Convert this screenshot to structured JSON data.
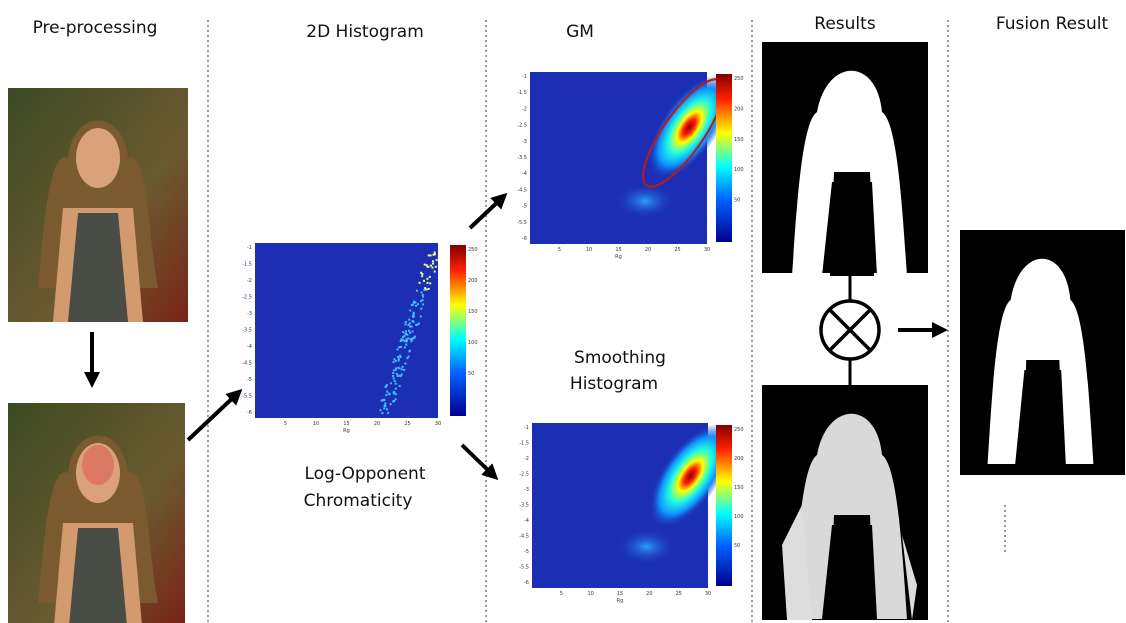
{
  "columns": {
    "preprocessing": "Pre-processing",
    "histogram": "2D Histogram",
    "gm": "GM",
    "results": "Results",
    "fusion": "Fusion Result"
  },
  "captions": {
    "log_opponent": [
      "Log-Opponent",
      "Chromaticity"
    ],
    "smoothing": [
      "Smoothing",
      "Histogram"
    ]
  },
  "heatmap_axes": {
    "xticks": [
      "5",
      "10",
      "15",
      "20",
      "25",
      "30"
    ],
    "yticks": [
      "-1",
      "-1.5",
      "-2",
      "-2.5",
      "-3",
      "-3.5",
      "-4",
      "-4.5",
      "-5",
      "-5.5",
      "-6"
    ],
    "xlabel": "Rg",
    "colorbar_ticks": [
      "250",
      "200",
      "150",
      "100",
      "50"
    ]
  }
}
